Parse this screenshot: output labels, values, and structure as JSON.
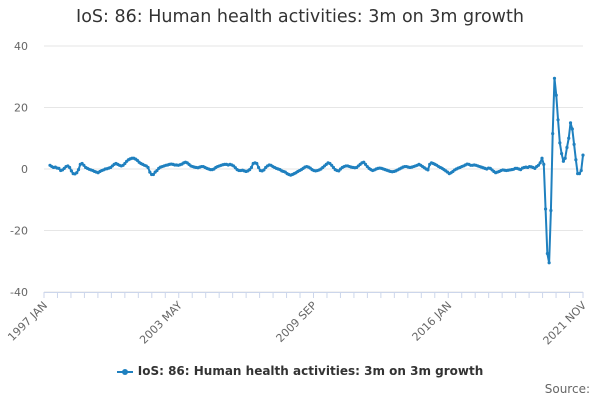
{
  "chart_data": {
    "type": "line",
    "title": "IoS: 86: Human health activities: 3m on 3m growth",
    "xlabel": "",
    "ylabel": "",
    "ylim": [
      -40,
      40
    ],
    "y_ticks": [
      "40",
      "20",
      "0",
      "-20",
      "-40"
    ],
    "x_ticks": [
      "1997 JAN",
      "2003 MAY",
      "2009 SEP",
      "2016 JAN",
      "2021 NOV"
    ],
    "grid": "horizontal",
    "legend": "bottom",
    "series": [
      {
        "name": "IoS: 86: Human health activities: 3m on 3m growth",
        "color": "#1f80bf",
        "values": [
          1.2,
          0.8,
          0.5,
          0.6,
          0.3,
          0.2,
          -0.5,
          -0.3,
          0.2,
          0.8,
          1.0,
          0.5,
          -0.6,
          -1.5,
          -1.6,
          -1.2,
          -0.2,
          1.5,
          1.8,
          1.2,
          0.5,
          0.2,
          -0.1,
          -0.3,
          -0.5,
          -0.8,
          -1.0,
          -1.2,
          -0.8,
          -0.5,
          -0.3,
          0.0,
          0.1,
          0.3,
          0.5,
          1.0,
          1.5,
          1.8,
          1.5,
          1.2,
          1.0,
          1.2,
          1.8,
          2.5,
          3.0,
          3.3,
          3.5,
          3.5,
          3.2,
          2.8,
          2.2,
          1.8,
          1.5,
          1.2,
          1.0,
          0.5,
          -1.0,
          -1.8,
          -1.8,
          -1.0,
          -0.5,
          0.2,
          0.6,
          0.8,
          1.0,
          1.2,
          1.3,
          1.5,
          1.6,
          1.5,
          1.3,
          1.3,
          1.2,
          1.4,
          1.6,
          2.0,
          2.2,
          2.0,
          1.5,
          1.0,
          0.8,
          0.6,
          0.5,
          0.4,
          0.6,
          0.8,
          0.8,
          0.5,
          0.2,
          0.0,
          -0.2,
          -0.2,
          0.0,
          0.5,
          0.8,
          1.0,
          1.2,
          1.4,
          1.5,
          1.5,
          1.3,
          1.5,
          1.3,
          1.0,
          0.4,
          -0.2,
          -0.5,
          -0.5,
          -0.4,
          -0.6,
          -0.8,
          -0.6,
          -0.2,
          0.5,
          1.8,
          2.0,
          1.8,
          0.5,
          -0.5,
          -0.6,
          -0.3,
          0.5,
          1.0,
          1.3,
          1.2,
          0.8,
          0.5,
          0.2,
          0.0,
          -0.2,
          -0.6,
          -0.8,
          -1.0,
          -1.5,
          -1.8,
          -2.0,
          -1.8,
          -1.5,
          -1.2,
          -0.8,
          -0.5,
          -0.2,
          0.2,
          0.6,
          0.8,
          0.6,
          0.3,
          -0.2,
          -0.5,
          -0.6,
          -0.5,
          -0.3,
          0.0,
          0.5,
          1.0,
          1.5,
          2.0,
          1.8,
          1.2,
          0.5,
          -0.2,
          -0.5,
          -0.6,
          0.0,
          0.5,
          0.8,
          1.0,
          1.0,
          0.8,
          0.6,
          0.5,
          0.4,
          0.5,
          1.0,
          1.5,
          2.0,
          2.2,
          1.5,
          0.8,
          0.2,
          -0.2,
          -0.5,
          -0.3,
          0.0,
          0.2,
          0.3,
          0.2,
          0.0,
          -0.2,
          -0.4,
          -0.6,
          -0.8,
          -0.9,
          -0.8,
          -0.6,
          -0.3,
          0.0,
          0.3,
          0.6,
          0.8,
          0.8,
          0.6,
          0.5,
          0.6,
          0.8,
          1.0,
          1.2,
          1.5,
          1.2,
          0.8,
          0.4,
          0.0,
          -0.3,
          1.5,
          2.0,
          1.8,
          1.5,
          1.2,
          0.8,
          0.5,
          0.2,
          -0.2,
          -0.6,
          -1.0,
          -1.5,
          -1.2,
          -0.8,
          -0.3,
          0.0,
          0.3,
          0.5,
          0.8,
          1.0,
          1.3,
          1.6,
          1.5,
          1.2,
          1.2,
          1.3,
          1.2,
          1.0,
          0.8,
          0.6,
          0.4,
          0.2,
          0.0,
          0.3,
          0.2,
          -0.3,
          -0.8,
          -1.2,
          -1.0,
          -0.8,
          -0.5,
          -0.3,
          -0.4,
          -0.5,
          -0.4,
          -0.3,
          -0.2,
          -0.1,
          0.2,
          0.2,
          0.0,
          -0.2,
          0.3,
          0.5,
          0.6,
          0.5,
          0.8,
          0.7,
          0.5,
          0.2,
          0.8,
          1.2,
          2.0,
          3.5,
          1.5,
          -13.0,
          -27.5,
          -30.5,
          -13.5,
          11.5,
          29.5,
          24.0,
          16.0,
          8.5,
          5.0,
          2.5,
          3.5,
          7.0,
          10.0,
          15.0,
          13.0,
          8.0,
          3.0,
          -1.5,
          -1.5,
          -0.5,
          4.5
        ]
      }
    ],
    "source_label": "Source:"
  }
}
